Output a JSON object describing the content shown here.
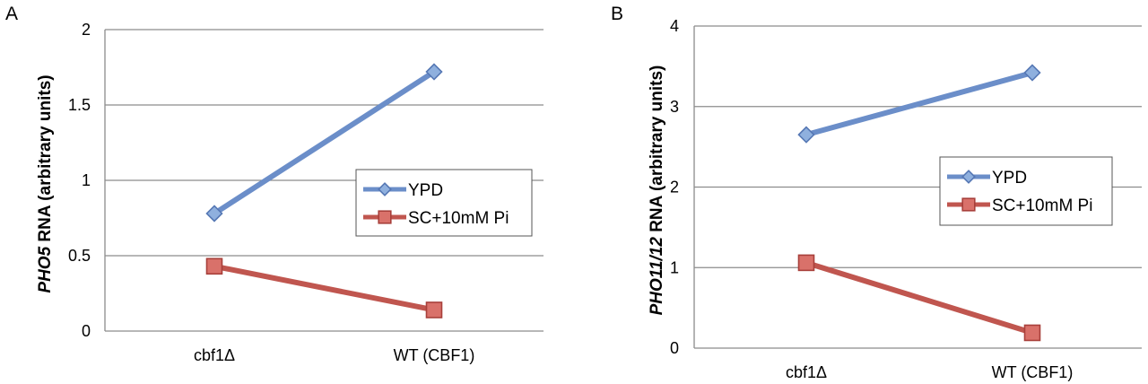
{
  "chart_data": [
    {
      "type": "line",
      "panel_label": "A",
      "categories": [
        "cbf1Δ",
        "WT (CBF1)"
      ],
      "ylabel_gene": "PHO5",
      "ylabel_rest": " RNA (arbitrary units)",
      "ylim": [
        0,
        2
      ],
      "yticks": [
        "0",
        "0.5",
        "1",
        "1.5",
        "2"
      ],
      "grid": true,
      "legend_position": "right-center",
      "series": [
        {
          "name": "YPD",
          "values": [
            0.78,
            1.72
          ],
          "color": "#6b8ec9",
          "marker": "diamond"
        },
        {
          "name": "SC+10mM Pi",
          "values": [
            0.43,
            0.14
          ],
          "color": "#c0564f",
          "marker": "square"
        }
      ]
    },
    {
      "type": "line",
      "panel_label": "B",
      "categories": [
        "cbf1Δ",
        "WT (CBF1)"
      ],
      "ylabel_gene": "PHO11/12",
      "ylabel_rest": " RNA (arbitrary units)",
      "ylim": [
        0,
        4
      ],
      "yticks": [
        "0",
        "1",
        "2",
        "3",
        "4"
      ],
      "grid": true,
      "legend_position": "right-center",
      "series": [
        {
          "name": "YPD",
          "values": [
            2.65,
            3.42
          ],
          "color": "#6b8ec9",
          "marker": "diamond"
        },
        {
          "name": "SC+10mM Pi",
          "values": [
            1.06,
            0.19
          ],
          "color": "#c0564f",
          "marker": "square"
        }
      ]
    }
  ]
}
